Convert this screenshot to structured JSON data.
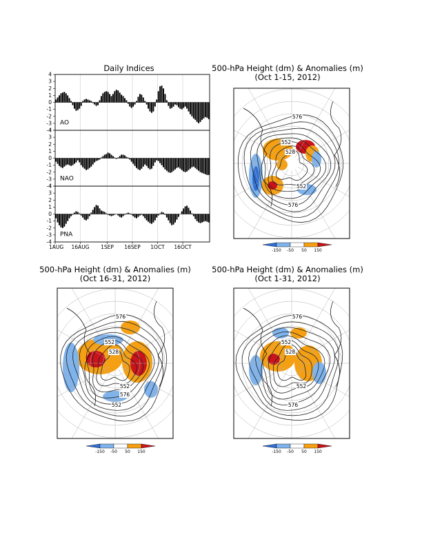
{
  "chart_data": [
    {
      "type": "bar",
      "title": "Daily Indices",
      "x_ticks": [
        "1AUG",
        "16AUG",
        "1SEP",
        "16SEP",
        "1OCT",
        "16OCT"
      ],
      "y_ticks": [
        "4",
        "3",
        "2",
        "1",
        "0",
        "-1",
        "-2",
        "-3",
        "-4"
      ],
      "ylim": [
        -4,
        4
      ],
      "x_start": "2012-08-01",
      "x_end": "2012-10-31",
      "series": [
        {
          "name": "AO",
          "values": [
            0.4,
            0.7,
            1.0,
            1.3,
            1.4,
            1.5,
            1.3,
            1.0,
            0.6,
            0.2,
            -0.4,
            -0.9,
            -1.2,
            -1.1,
            -0.9,
            -0.5,
            0.2,
            0.4,
            0.5,
            0.4,
            0.3,
            0.2,
            -0.1,
            -0.3,
            -0.5,
            -0.4,
            0.3,
            0.9,
            1.3,
            1.5,
            1.6,
            1.5,
            1.2,
            0.9,
            1.2,
            1.6,
            1.8,
            1.7,
            1.4,
            1.1,
            0.9,
            0.6,
            0.3,
            -0.2,
            -0.6,
            -0.8,
            -0.6,
            -0.3,
            0.2,
            0.8,
            1.2,
            1.1,
            0.7,
            0.2,
            -0.3,
            -0.9,
            -1.3,
            -1.5,
            -1.3,
            -0.6,
            0.4,
            1.6,
            2.3,
            2.4,
            2.0,
            1.2,
            0.3,
            -0.5,
            -0.9,
            -0.8,
            -0.6,
            -0.3,
            -0.4,
            -0.7,
            -0.9,
            -1.0,
            -0.8,
            -0.6,
            -0.9,
            -1.3,
            -1.7,
            -2.0,
            -2.3,
            -2.5,
            -2.8,
            -3.0,
            -2.8,
            -2.5,
            -2.3,
            -2.1,
            -2.2,
            -2.4
          ]
        },
        {
          "name": "NAO",
          "values": [
            -0.5,
            -0.8,
            -1.1,
            -1.3,
            -1.4,
            -1.2,
            -1.0,
            -0.9,
            -1.0,
            -1.1,
            -1.0,
            -0.8,
            -0.6,
            -0.3,
            -0.6,
            -1.0,
            -1.3,
            -1.5,
            -1.7,
            -1.6,
            -1.4,
            -1.2,
            -0.9,
            -0.6,
            -0.4,
            -0.3,
            -0.2,
            0.1,
            0.3,
            0.5,
            0.6,
            0.8,
            0.7,
            0.5,
            0.3,
            0.1,
            -0.1,
            0.1,
            0.3,
            0.5,
            0.5,
            0.4,
            0.2,
            0.1,
            -0.2,
            -0.5,
            -0.8,
            -1.1,
            -1.4,
            -1.6,
            -1.7,
            -1.5,
            -1.2,
            -0.9,
            -1.1,
            -1.4,
            -1.6,
            -1.5,
            -1.1,
            -0.6,
            -0.3,
            -0.4,
            -0.7,
            -1.0,
            -1.3,
            -1.6,
            -1.8,
            -2.0,
            -2.1,
            -2.0,
            -1.8,
            -1.6,
            -1.4,
            -1.3,
            -1.5,
            -1.7,
            -1.9,
            -2.0,
            -1.9,
            -1.7,
            -1.5,
            -1.3,
            -1.2,
            -1.4,
            -1.6,
            -1.8,
            -2.0,
            -2.1,
            -2.2,
            -2.3,
            -2.4,
            -2.4
          ]
        },
        {
          "name": "PNA",
          "values": [
            -0.6,
            -1.2,
            -1.6,
            -1.9,
            -2.0,
            -1.8,
            -1.4,
            -1.0,
            -0.6,
            -0.3,
            -0.1,
            0.2,
            0.4,
            0.3,
            0.1,
            -0.2,
            -0.5,
            -0.8,
            -0.9,
            -0.7,
            -0.3,
            0.2,
            0.6,
            1.0,
            1.3,
            1.2,
            0.8,
            0.5,
            0.4,
            0.3,
            0.1,
            -0.1,
            -0.2,
            -0.3,
            -0.2,
            -0.1,
            0.0,
            -0.2,
            -0.4,
            -0.5,
            -0.3,
            -0.1,
            0.1,
            0.2,
            0.1,
            -0.1,
            -0.3,
            -0.5,
            -0.6,
            -0.4,
            -0.2,
            -0.1,
            -0.3,
            -0.6,
            -0.9,
            -1.1,
            -1.3,
            -1.4,
            -1.2,
            -0.9,
            -0.5,
            -0.2,
            0.1,
            0.3,
            0.2,
            -0.1,
            -0.5,
            -0.9,
            -1.3,
            -1.6,
            -1.5,
            -1.2,
            -0.8,
            -0.4,
            0.0,
            0.4,
            0.8,
            1.1,
            1.2,
            0.9,
            0.5,
            0.1,
            -0.3,
            -0.7,
            -1.0,
            -1.2,
            -1.3,
            -1.2,
            -1.1,
            -1.0,
            -1.1,
            -1.2
          ]
        }
      ]
    },
    {
      "type": "map",
      "title": "500-hPa Height (dm) & Anomalies (m)",
      "subtitle": "(Oct 1-15, 2012)",
      "contour_labels": [
        "576",
        "552",
        "528",
        "552",
        "576"
      ],
      "colorbar": {
        "labels": [
          "-150",
          "-50",
          "50",
          "150"
        ],
        "colors": [
          "#2f6fd6",
          "#7fb3ec",
          "#ffffff",
          "#f5a012",
          "#c9141b"
        ]
      }
    },
    {
      "type": "map",
      "title": "500-hPa Height (dm) & Anomalies (m)",
      "subtitle": "(Oct 16-31, 2012)",
      "contour_labels": [
        "576",
        "552",
        "528",
        "552",
        "552",
        "576"
      ],
      "colorbar": {
        "labels": [
          "-150",
          "-50",
          "50",
          "150"
        ],
        "colors": [
          "#2f6fd6",
          "#7fb3ec",
          "#ffffff",
          "#f5a012",
          "#c9141b"
        ]
      }
    },
    {
      "type": "map",
      "title": "500-hPa Height (dm) & Anomalies (m)",
      "subtitle": "(Oct 1-31, 2012)",
      "contour_labels": [
        "576",
        "552",
        "528",
        "552",
        "576"
      ],
      "colorbar": {
        "labels": [
          "-150",
          "-50",
          "50",
          "150"
        ],
        "colors": [
          "#2f6fd6",
          "#7fb3ec",
          "#ffffff",
          "#f5a012",
          "#c9141b"
        ]
      }
    }
  ]
}
